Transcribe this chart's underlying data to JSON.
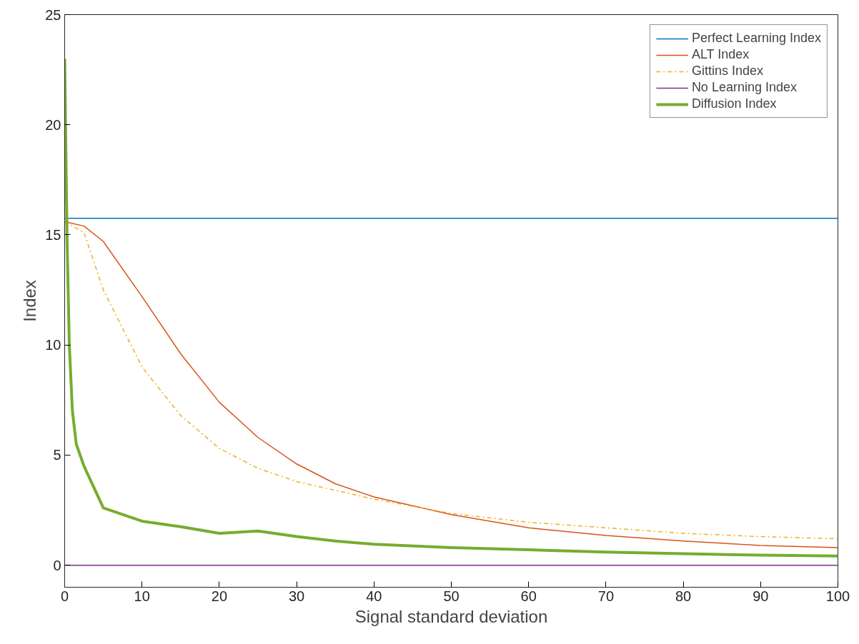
{
  "chart_data": {
    "type": "line",
    "xlabel": "Signal standard deviation",
    "ylabel": "Index",
    "xlim": [
      0,
      100
    ],
    "ylim": [
      -1,
      25
    ],
    "xticks": [
      0,
      10,
      20,
      30,
      40,
      50,
      60,
      70,
      80,
      90,
      100
    ],
    "yticks": [
      0,
      5,
      10,
      15,
      20,
      25
    ],
    "grid": false,
    "legend": "top right",
    "marker": "none",
    "series": [
      {
        "name": "Perfect Learning Index",
        "color": "#0072bd",
        "x": [
          0,
          100
        ],
        "values": [
          15.75,
          15.75
        ]
      },
      {
        "name": "ALT Index",
        "color": "#d95319",
        "x": [
          0,
          2.5,
          5,
          10,
          15,
          20,
          25,
          30,
          35,
          40,
          50,
          60,
          70,
          80,
          90,
          100
        ],
        "values": [
          15.6,
          15.4,
          14.7,
          12.2,
          9.6,
          7.4,
          5.8,
          4.6,
          3.7,
          3.1,
          2.3,
          1.7,
          1.35,
          1.1,
          0.9,
          0.8
        ]
      },
      {
        "name": "Gittins Index",
        "color": "#edb120",
        "line_style": "dashdot",
        "x": [
          0,
          2.5,
          5,
          10,
          15,
          20,
          25,
          30,
          40,
          50,
          60,
          70,
          80,
          90,
          100
        ],
        "values": [
          15.6,
          15.1,
          12.5,
          9.0,
          6.8,
          5.3,
          4.4,
          3.8,
          3.0,
          2.35,
          1.95,
          1.7,
          1.45,
          1.3,
          1.2
        ]
      },
      {
        "name": "No Learning Index",
        "color": "#7e2f8e",
        "x": [
          0,
          100
        ],
        "values": [
          0,
          0
        ]
      },
      {
        "name": "Diffusion Index",
        "color": "#77ac30",
        "x": [
          0,
          0.3,
          0.6,
          1,
          1.5,
          2.5,
          5,
          10,
          15,
          20,
          25,
          30,
          35,
          40,
          50,
          60,
          70,
          80,
          90,
          100
        ],
        "values": [
          23,
          15,
          10,
          7,
          5.5,
          4.5,
          2.6,
          2.0,
          1.75,
          1.45,
          1.55,
          1.3,
          1.1,
          0.95,
          0.8,
          0.7,
          0.6,
          0.52,
          0.46,
          0.42
        ]
      }
    ]
  }
}
